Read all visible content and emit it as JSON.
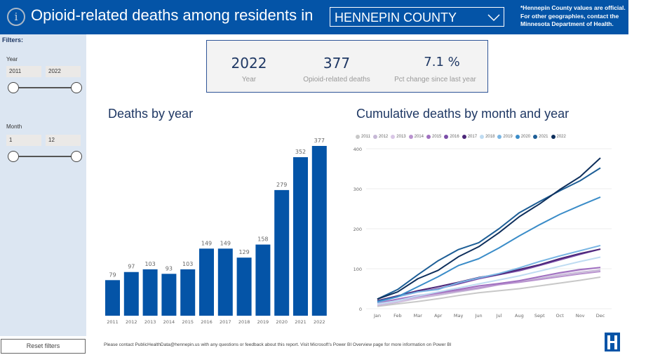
{
  "header": {
    "title": "Opioid-related deaths among residents in",
    "geography_selected": "HENNEPIN COUNTY",
    "note": "*Hennepin County values are official. For other geographies, contact the Minnesota Department of Health."
  },
  "sidebar": {
    "filters_label": "Filters:",
    "year_label": "Year",
    "year_min": "2011",
    "year_max": "2022",
    "month_label": "Month",
    "month_min": "1",
    "month_max": "12",
    "reset_label": "Reset filters"
  },
  "kpi": {
    "year_value": "2022",
    "year_label": "Year",
    "deaths_value": "377",
    "deaths_label": "Opioid-related deaths",
    "pct_value": "7.1 %",
    "pct_label": "Pct change since last year"
  },
  "footer": {
    "text": "Please contact PublicHealthData@hennepin.us with any questions or feedback about this report. Visit Microsoft's Power BI Overview page for more information on Power BI"
  },
  "colors": {
    "brand": "#0454a7",
    "bar": "#0454a7",
    "title": "#1f3864"
  },
  "chart_data": [
    {
      "type": "bar",
      "title": "Deaths by year",
      "categories": [
        "2011",
        "2012",
        "2013",
        "2014",
        "2015",
        "2016",
        "2017",
        "2018",
        "2019",
        "2020",
        "2021",
        "2022"
      ],
      "values": [
        79,
        97,
        103,
        93,
        103,
        149,
        149,
        129,
        158,
        279,
        352,
        377
      ],
      "xlabel": "",
      "ylabel": "",
      "ylim": [
        0,
        377
      ],
      "grid": false
    },
    {
      "type": "line",
      "title": "Cumulative deaths by month and year",
      "x": [
        "Jan",
        "Feb",
        "Mar",
        "Apr",
        "May",
        "Jun",
        "Jul",
        "Aug",
        "Sept",
        "Oct",
        "Nov",
        "Dec"
      ],
      "yticks": [
        0,
        100,
        200,
        300,
        400
      ],
      "ylim": [
        0,
        400
      ],
      "grid": true,
      "legend_position": "top",
      "series": [
        {
          "name": "2011",
          "color": "#c8c8c8",
          "values": [
            6,
            12,
            18,
            25,
            33,
            40,
            45,
            50,
            57,
            64,
            71,
            79
          ]
        },
        {
          "name": "2012",
          "color": "#c6b8d6",
          "values": [
            8,
            16,
            26,
            34,
            42,
            50,
            60,
            68,
            76,
            84,
            91,
            97
          ]
        },
        {
          "name": "2013",
          "color": "#d9c6e6",
          "values": [
            10,
            18,
            28,
            37,
            46,
            55,
            63,
            70,
            80,
            88,
            96,
            103
          ]
        },
        {
          "name": "2014",
          "color": "#b993cf",
          "values": [
            12,
            20,
            30,
            38,
            45,
            52,
            60,
            66,
            73,
            80,
            87,
            93
          ]
        },
        {
          "name": "2015",
          "color": "#a070c0",
          "values": [
            14,
            24,
            33,
            40,
            48,
            57,
            63,
            70,
            80,
            90,
            98,
            103
          ]
        },
        {
          "name": "2016",
          "color": "#7b4ea8",
          "values": [
            18,
            30,
            42,
            50,
            62,
            75,
            85,
            95,
            108,
            122,
            136,
            149
          ]
        },
        {
          "name": "2017",
          "color": "#4b2678",
          "values": [
            20,
            32,
            45,
            55,
            66,
            78,
            86,
            98,
            110,
            125,
            138,
            149
          ]
        },
        {
          "name": "2018",
          "color": "#bfdcf2",
          "values": [
            12,
            20,
            32,
            42,
            52,
            62,
            72,
            82,
            94,
            106,
            118,
            129
          ]
        },
        {
          "name": "2019",
          "color": "#7ab6e3",
          "values": [
            16,
            30,
            42,
            48,
            65,
            77,
            88,
            102,
            118,
            132,
            145,
            158
          ]
        },
        {
          "name": "2020",
          "color": "#3a8cc8",
          "values": [
            18,
            30,
            55,
            80,
            108,
            125,
            152,
            182,
            210,
            236,
            258,
            279
          ]
        },
        {
          "name": "2021",
          "color": "#1d5e96",
          "values": [
            24,
            48,
            85,
            120,
            148,
            165,
            200,
            240,
            268,
            295,
            320,
            352
          ]
        },
        {
          "name": "2022",
          "color": "#0e2f5c",
          "values": [
            24,
            42,
            75,
            96,
            130,
            155,
            190,
            230,
            262,
            298,
            330,
            377
          ]
        }
      ]
    }
  ]
}
